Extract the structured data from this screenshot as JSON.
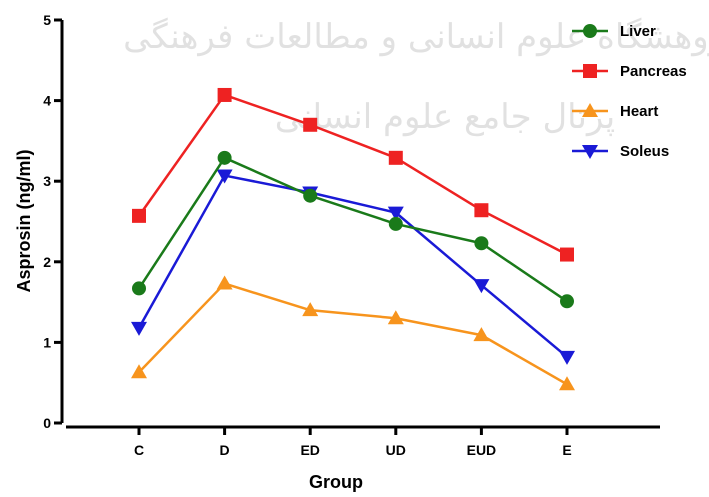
{
  "chart_data": {
    "type": "line",
    "title": "",
    "xlabel": "Group",
    "ylabel": "Asprosin (ng/ml)",
    "categories": [
      "C",
      "D",
      "ED",
      "UD",
      "EUD",
      "E"
    ],
    "ylim": [
      0,
      5
    ],
    "yticks": [
      0,
      1,
      2,
      3,
      4,
      5
    ],
    "grid": false,
    "legend_position": "top-right",
    "series": [
      {
        "name": "Liver",
        "color": "#1a7a1a",
        "marker": "circle",
        "values": [
          1.67,
          3.29,
          2.82,
          2.47,
          2.23,
          1.51
        ]
      },
      {
        "name": "Pancreas",
        "color": "#ee2222",
        "marker": "square",
        "values": [
          2.57,
          4.07,
          3.7,
          3.29,
          2.64,
          2.09
        ]
      },
      {
        "name": "Heart",
        "color": "#f7941d",
        "marker": "triangle-up",
        "values": [
          0.63,
          1.73,
          1.4,
          1.3,
          1.09,
          0.48
        ]
      },
      {
        "name": "Soleus",
        "color": "#1a1ad6",
        "marker": "triangle-down",
        "values": [
          1.18,
          3.07,
          2.86,
          2.61,
          1.71,
          0.82
        ]
      }
    ]
  },
  "watermark": {
    "line1": "پژوهشگاه علوم انسانی و مطالعات فرهنگی",
    "line2": "پرتال جامع علوم انسانی"
  }
}
